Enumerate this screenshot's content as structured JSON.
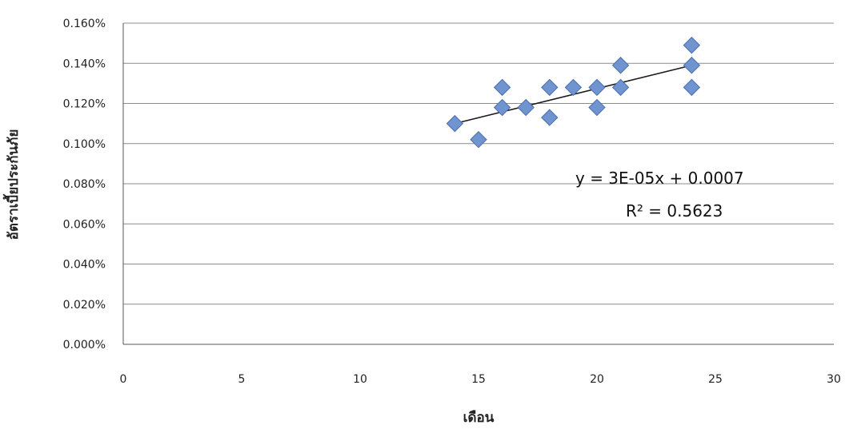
{
  "chart_data": {
    "type": "scatter",
    "title": "",
    "xlabel": "เดือน",
    "ylabel": "อัตราเบี้ยประกันภัย",
    "xlim": [
      0,
      30
    ],
    "ylim": [
      0,
      0.0016
    ],
    "x_ticks": [
      0,
      5,
      10,
      15,
      20,
      25,
      30
    ],
    "y_ticks": [
      0,
      0.0002,
      0.0004,
      0.0006,
      0.0008,
      0.001,
      0.0012,
      0.0014,
      0.0016
    ],
    "x_tick_labels": [
      "0",
      "5",
      "10",
      "15",
      "20",
      "25",
      "30"
    ],
    "y_tick_labels": [
      "0.000%",
      "0.020%",
      "0.040%",
      "0.060%",
      "0.080%",
      "0.100%",
      "0.120%",
      "0.140%",
      "0.160%"
    ],
    "grid": true,
    "marker": "diamond",
    "marker_color": "#7094cf",
    "series": [
      {
        "points": [
          {
            "x": 14,
            "y": 0.0011
          },
          {
            "x": 15,
            "y": 0.00102
          },
          {
            "x": 16,
            "y": 0.00128
          },
          {
            "x": 16,
            "y": 0.00118
          },
          {
            "x": 17,
            "y": 0.00118
          },
          {
            "x": 18,
            "y": 0.00128
          },
          {
            "x": 18,
            "y": 0.00113
          },
          {
            "x": 19,
            "y": 0.00128
          },
          {
            "x": 20,
            "y": 0.00128
          },
          {
            "x": 20,
            "y": 0.00118
          },
          {
            "x": 21,
            "y": 0.00139
          },
          {
            "x": 21,
            "y": 0.00128
          },
          {
            "x": 24,
            "y": 0.00149
          },
          {
            "x": 24,
            "y": 0.00139
          },
          {
            "x": 24,
            "y": 0.00128
          }
        ]
      }
    ],
    "trendline": {
      "type": "linear",
      "x_range": [
        14,
        24
      ],
      "y_range": [
        0.0011,
        0.00139
      ],
      "equation": "y = 3E-05x + 0.0007",
      "r_squared": "R² = 0.5623"
    }
  }
}
